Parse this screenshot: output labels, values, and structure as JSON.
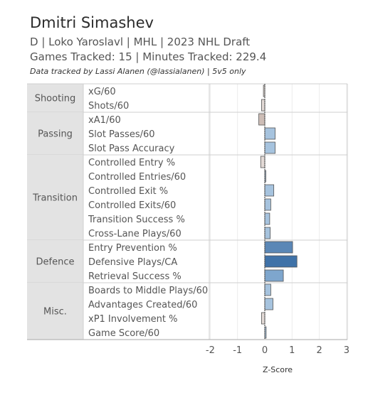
{
  "header": {
    "title": "Dmitri Simashev",
    "subtitle": "D | Loko Yaroslavl | MHL | 2023 NHL Draft",
    "tracked": "Games Tracked: 15 | Minutes Tracked: 229.4",
    "credit": "Data tracked by Lassi Alanen (@lassialanen) | 5v5 only"
  },
  "chart_data": {
    "type": "bar",
    "orientation": "horizontal",
    "xlabel": "Z-Score",
    "xlim": [
      -2.2,
      3.1
    ],
    "xticks": [
      "-2",
      "-1",
      "0",
      "1",
      "2",
      "3"
    ],
    "grid": true,
    "colors": {
      "positive_low": "#a6c3de",
      "positive_high": "#3f72a8",
      "negative_low": "#e3dad6",
      "negative_high": "#cdbdb6",
      "border": "#555555",
      "group_bg": "#e3e3e3"
    },
    "groups": [
      {
        "name": "Shooting",
        "metrics": [
          {
            "label": "xG/60",
            "value": -0.05
          },
          {
            "label": "Shots/60",
            "value": -0.12
          }
        ]
      },
      {
        "name": "Passing",
        "metrics": [
          {
            "label": "xA1/60",
            "value": -0.22
          },
          {
            "label": "Slot Passes/60",
            "value": 0.38
          },
          {
            "label": "Slot Pass Accuracy",
            "value": 0.38
          }
        ]
      },
      {
        "name": "Transition",
        "metrics": [
          {
            "label": "Controlled Entry %",
            "value": -0.15
          },
          {
            "label": "Controlled Entries/60",
            "value": 0.0
          },
          {
            "label": "Controlled Exit %",
            "value": 0.33
          },
          {
            "label": "Controlled Exits/60",
            "value": 0.22
          },
          {
            "label": "Transition Success %",
            "value": 0.18
          },
          {
            "label": "Cross-Lane Plays/60",
            "value": 0.2
          }
        ]
      },
      {
        "name": "Defence",
        "metrics": [
          {
            "label": "Entry Prevention %",
            "value": 1.02
          },
          {
            "label": "Defensive Plays/CA",
            "value": 1.18
          },
          {
            "label": "Retrieval Success %",
            "value": 0.68
          }
        ]
      },
      {
        "name": "Misc.",
        "metrics": [
          {
            "label": "Boards to Middle Plays/60",
            "value": 0.22
          },
          {
            "label": "Advantages Created/60",
            "value": 0.3
          },
          {
            "label": "xP1 Involvement %",
            "value": -0.12
          },
          {
            "label": "Game Score/60",
            "value": 0.05
          }
        ]
      }
    ]
  }
}
